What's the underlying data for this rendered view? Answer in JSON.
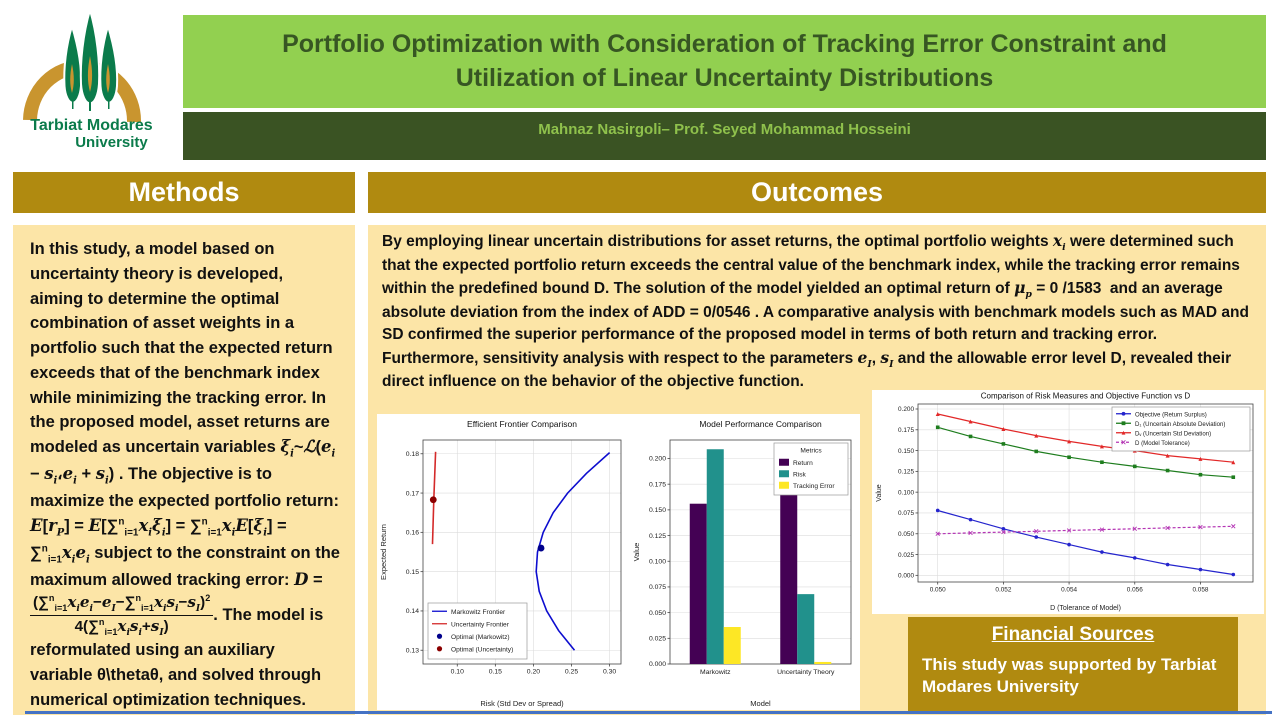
{
  "header": {
    "title": "Portfolio Optimization with Consideration of Tracking Error Constraint and Utilization of Linear Uncertainty Distributions",
    "authors": "Mahnaz  Nasirgoli– Prof. Seyed Mohammad  Hosseini"
  },
  "logo": {
    "line1": "Tarbiat Modares",
    "line2": "University"
  },
  "palette": {
    "light_green": "#92D050",
    "dark_green_bar": "#3A5323",
    "title_text_green": "#375623",
    "gold": "#B08A10",
    "light_yellow": "#FCE5A7",
    "logo_green": "#0B7B4B",
    "logo_gold": "#C9952F",
    "divider_blue": "#4472C4"
  },
  "methods": {
    "heading": "Methods",
    "body_html": "In this study, a model based on uncertainty theory is developed, aiming to determine the optimal combination of asset weights in a portfolio such that the expected return exceeds that of the benchmark index while minimizing the tracking error. In the proposed model, asset returns are modeled as uncertain variables <i class='m'>ξ<sub>i</sub></i>~<i class='m'>ℒ</i>(<i class='m'>e<sub>i</sub></i> − <i class='m'>s<sub>i</sub></i>،<i class='m'>e<sub>i</sub></i> + <i class='m'>s<sub>i</sub></i>) . The objective is to maximize the expected portfolio return: <i class='m'>E</i>[<i class='m'>r<sub>P</sub></i>] = <i class='m'>E</i>[∑<sup>n</sup><sub>i=1</sub><i class='m'>x<sub>i</sub>ξ<sub>i</sub></i>] = ∑<sup>n</sup><sub>i=1</sub><i class='m'>x<sub>i</sub>E</i>[<i class='m'>ξ<sub>i</sub></i>] = ∑<sup>n</sup><sub>i=1</sub><i class='m'>x<sub>i</sub>e<sub>i</sub></i> subject to the constraint on the maximum allowed tracking error: <i class='m'>D</i> = <span class='frac'><span class='num'>(∑<sup>n</sup><sub>i=1</sub><i class='m'>x<sub>i</sub>e<sub>i</sub></i>−<i class='m'>e<sub>I</sub></i>−∑<sup>n</sup><sub>i=1</sub><i class='m'>x<sub>i</sub>s<sub>i</sub></i>−<i class='m'>s<sub>I</sub></i>)<sup>2</sup></span><span class='den'>4(∑<sup>n</sup><sub>i=1</sub><i class='m'>x<sub>i</sub>s<sub>i</sub></i>+<i class='m'>s<sub>I</sub></i>)</span></span>. The model is reformulated using an auxiliary variable θ\\thetaθ, and solved through numerical optimization techniques."
  },
  "outcomes": {
    "heading": "Outcomes",
    "body_html": "By employing linear uncertain distributions for asset returns, the optimal portfolio weights <i class='m'>x<sub>i</sub></i> were determined such that the expected portfolio return exceeds the central value of the benchmark index, while the tracking error remains within the predefined bound D. The solution of the model yielded an optimal return of <i class='m'>μ<sub>p</sub></i> = 0 /1583&nbsp; and an average absolute deviation from the index of ADD = 0/0546 . A comparative analysis with benchmark models such as MAD and SD confirmed the superior performance of the proposed model in terms of both return and tracking error. Furthermore, sensitivity analysis with respect to the parameters <i class='m'>e<sub>I</sub></i>, <i class='m'>s<sub>I</sub></i> and the allowable error level D, revealed their direct influence on the behavior of the objective function."
  },
  "financial": {
    "heading": "Financial  Sources",
    "body": "This study was supported by Tarbiat Modares University"
  },
  "chart_data": [
    {
      "type": "line",
      "title": "Efficient Frontier Comparison",
      "xlabel": "Risk (Std Dev or Spread)",
      "ylabel": "Expected Return",
      "xlim": [
        0.055,
        0.315
      ],
      "ylim": [
        0.1265,
        0.1835
      ],
      "xticks": [
        0.1,
        0.15,
        0.2,
        0.25,
        0.3
      ],
      "xtick_labels": [
        "0.10",
        "0.15",
        "0.20",
        "0.25",
        "0.30"
      ],
      "yticks": [
        0.13,
        0.14,
        0.15,
        0.16,
        0.17,
        0.18
      ],
      "ytick_labels": [
        "0.13",
        "0.14",
        "0.15",
        "0.16",
        "0.17",
        "0.18"
      ],
      "grid": true,
      "legend_position": "lower-left",
      "series": [
        {
          "name": "Markowitz Frontier",
          "kind": "line",
          "color": "#0d0dcf",
          "width": 1.6,
          "x": [
            0.254,
            0.233,
            0.2174,
            0.2076,
            0.2036,
            0.2053,
            0.2128,
            0.226,
            0.2449,
            0.2696,
            0.3
          ],
          "y": [
            0.13,
            0.135,
            0.14,
            0.145,
            0.15,
            0.155,
            0.16,
            0.165,
            0.17,
            0.175,
            0.1803
          ]
        },
        {
          "name": "Uncertainty Frontier",
          "kind": "line",
          "color": "#d42a2a",
          "width": 1.6,
          "x": [
            0.0675,
            0.0692,
            0.0715
          ],
          "y": [
            0.157,
            0.1683,
            0.1805
          ]
        },
        {
          "name": "Optimal (Markowitz)",
          "kind": "point",
          "color": "#00008b",
          "marker": "dot",
          "msize": 3.4,
          "x": [
            0.21
          ],
          "y": [
            0.156
          ]
        },
        {
          "name": "Optimal (Uncertainty)",
          "kind": "point",
          "color": "#8b0000",
          "marker": "dot",
          "msize": 3.4,
          "x": [
            0.0685
          ],
          "y": [
            0.1683
          ]
        }
      ]
    },
    {
      "type": "bar",
      "title": "Model Performance Comparison",
      "xlabel": "Model",
      "ylabel": "Value",
      "categories": [
        "Markowitz",
        "Uncertainty Theory"
      ],
      "ylim": [
        0,
        0.218
      ],
      "yticks": [
        0,
        0.025,
        0.05,
        0.075,
        0.1,
        0.125,
        0.15,
        0.175,
        0.2
      ],
      "ytick_labels": [
        "0.000",
        "0.025",
        "0.050",
        "0.075",
        "0.100",
        "0.125",
        "0.150",
        "0.175",
        "0.200"
      ],
      "legend_title": "Metrics",
      "legend_position": "upper-right",
      "series": [
        {
          "name": "Return",
          "color": "#440154",
          "values": [
            0.156,
            0.168
          ]
        },
        {
          "name": "Risk",
          "color": "#21918c",
          "values": [
            0.209,
            0.068
          ]
        },
        {
          "name": "Tracking Error",
          "color": "#fde725",
          "values": [
            0.036,
            0.002
          ]
        }
      ]
    },
    {
      "type": "line",
      "title": "Comparison of Risk Measures and Objective Function vs D",
      "xlabel": "D (Tolerance of Model)",
      "ylabel": "Value",
      "xlim": [
        0.0494,
        0.0596
      ],
      "ylim": [
        -0.008,
        0.206
      ],
      "xticks": [
        0.05,
        0.052,
        0.054,
        0.056,
        0.058
      ],
      "xtick_labels": [
        "0.050",
        "0.052",
        "0.054",
        "0.056",
        "0.058"
      ],
      "yticks": [
        0,
        0.025,
        0.05,
        0.075,
        0.1,
        0.125,
        0.15,
        0.175,
        0.2
      ],
      "ytick_labels": [
        "0.000",
        "0.025",
        "0.050",
        "0.075",
        "0.100",
        "0.125",
        "0.150",
        "0.175",
        "0.200"
      ],
      "grid": true,
      "legend_position": "upper-right",
      "series": [
        {
          "name": "Objective (Return Surplus)",
          "kind": "line",
          "color": "#2525cd",
          "marker": "dot",
          "msize": 1.8,
          "x": [
            0.05,
            0.051,
            0.052,
            0.053,
            0.054,
            0.055,
            0.056,
            0.057,
            0.058,
            0.059
          ],
          "y": [
            0.078,
            0.067,
            0.056,
            0.046,
            0.037,
            0.028,
            0.021,
            0.013,
            0.007,
            0.001
          ]
        },
        {
          "name": "D₁ (Uncertain Absolute Deviation)",
          "kind": "line",
          "color": "#1e7d1e",
          "marker": "square",
          "msize": 1.8,
          "x": [
            0.05,
            0.051,
            0.052,
            0.053,
            0.054,
            0.055,
            0.056,
            0.057,
            0.058,
            0.059
          ],
          "y": [
            0.178,
            0.167,
            0.158,
            0.149,
            0.142,
            0.136,
            0.131,
            0.126,
            0.121,
            0.118
          ]
        },
        {
          "name": "Dᵥ (Uncertain Std Deviation)",
          "kind": "line",
          "color": "#e22828",
          "marker": "tri",
          "msize": 2.0,
          "x": [
            0.05,
            0.051,
            0.052,
            0.053,
            0.054,
            0.055,
            0.056,
            0.057,
            0.058,
            0.059
          ],
          "y": [
            0.194,
            0.185,
            0.176,
            0.168,
            0.161,
            0.155,
            0.15,
            0.144,
            0.14,
            0.136
          ]
        },
        {
          "name": "D (Model Tolerance)",
          "kind": "line",
          "color": "#b434b4",
          "dash": true,
          "marker": "x",
          "msize": 1.9,
          "x": [
            0.05,
            0.051,
            0.052,
            0.053,
            0.054,
            0.055,
            0.056,
            0.057,
            0.058,
            0.059
          ],
          "y": [
            0.05,
            0.051,
            0.052,
            0.053,
            0.054,
            0.055,
            0.056,
            0.057,
            0.058,
            0.059
          ]
        }
      ]
    }
  ]
}
